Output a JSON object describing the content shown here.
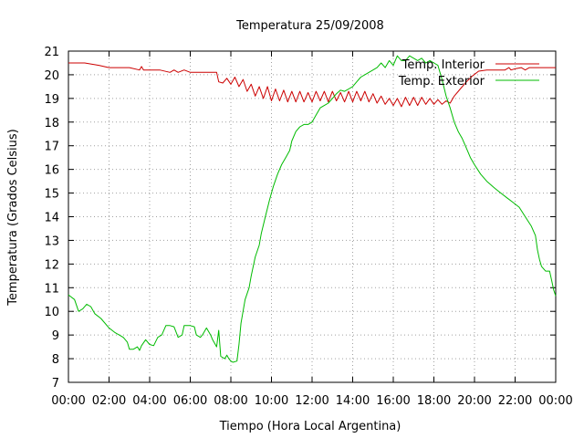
{
  "chart_data": {
    "type": "line",
    "title": "Temperatura 25/09/2008",
    "xlabel": "Tiempo (Hora Local Argentina)",
    "ylabel": "Temperatura (Grados Celsius)",
    "xlim": [
      0,
      24
    ],
    "ylim": [
      7,
      21
    ],
    "xticks": [
      {
        "value": 0,
        "label": "00:00"
      },
      {
        "value": 2,
        "label": "02:00"
      },
      {
        "value": 4,
        "label": "04:00"
      },
      {
        "value": 6,
        "label": "06:00"
      },
      {
        "value": 8,
        "label": "08:00"
      },
      {
        "value": 10,
        "label": "10:00"
      },
      {
        "value": 12,
        "label": "12:00"
      },
      {
        "value": 14,
        "label": "14:00"
      },
      {
        "value": 16,
        "label": "16:00"
      },
      {
        "value": 18,
        "label": "18:00"
      },
      {
        "value": 20,
        "label": "20:00"
      },
      {
        "value": 22,
        "label": "22:00"
      },
      {
        "value": 24,
        "label": "00:00"
      }
    ],
    "yticks": [
      7,
      8,
      9,
      10,
      11,
      12,
      13,
      14,
      15,
      16,
      17,
      18,
      19,
      20,
      21
    ],
    "grid": true,
    "legend_position": "top-right",
    "series": [
      {
        "name": "Temp. Interior",
        "color": "#cc0000",
        "points": [
          [
            0,
            20.5
          ],
          [
            0.8,
            20.5
          ],
          [
            1.5,
            20.4
          ],
          [
            2,
            20.3
          ],
          [
            3,
            20.3
          ],
          [
            3.5,
            20.2
          ],
          [
            3.6,
            20.35
          ],
          [
            3.7,
            20.2
          ],
          [
            4,
            20.2
          ],
          [
            4.5,
            20.2
          ],
          [
            5,
            20.1
          ],
          [
            5.2,
            20.2
          ],
          [
            5.4,
            20.1
          ],
          [
            5.7,
            20.2
          ],
          [
            6,
            20.1
          ],
          [
            6.5,
            20.1
          ],
          [
            7,
            20.1
          ],
          [
            7.3,
            20.1
          ],
          [
            7.4,
            19.7
          ],
          [
            7.6,
            19.65
          ],
          [
            7.8,
            19.85
          ],
          [
            8.0,
            19.6
          ],
          [
            8.2,
            19.9
          ],
          [
            8.4,
            19.5
          ],
          [
            8.6,
            19.8
          ],
          [
            8.8,
            19.3
          ],
          [
            9.0,
            19.6
          ],
          [
            9.2,
            19.1
          ],
          [
            9.4,
            19.5
          ],
          [
            9.6,
            19.0
          ],
          [
            9.8,
            19.5
          ],
          [
            10.0,
            18.9
          ],
          [
            10.2,
            19.4
          ],
          [
            10.4,
            18.9
          ],
          [
            10.6,
            19.35
          ],
          [
            10.8,
            18.85
          ],
          [
            11.0,
            19.3
          ],
          [
            11.2,
            18.85
          ],
          [
            11.4,
            19.3
          ],
          [
            11.6,
            18.85
          ],
          [
            11.8,
            19.25
          ],
          [
            12.0,
            18.85
          ],
          [
            12.2,
            19.3
          ],
          [
            12.4,
            18.9
          ],
          [
            12.6,
            19.3
          ],
          [
            12.8,
            18.85
          ],
          [
            13.0,
            19.3
          ],
          [
            13.2,
            18.9
          ],
          [
            13.4,
            19.25
          ],
          [
            13.6,
            18.85
          ],
          [
            13.8,
            19.3
          ],
          [
            14.0,
            18.85
          ],
          [
            14.2,
            19.3
          ],
          [
            14.4,
            18.9
          ],
          [
            14.6,
            19.3
          ],
          [
            14.8,
            18.85
          ],
          [
            15.0,
            19.2
          ],
          [
            15.2,
            18.8
          ],
          [
            15.4,
            19.1
          ],
          [
            15.6,
            18.75
          ],
          [
            15.8,
            19.0
          ],
          [
            16.0,
            18.7
          ],
          [
            16.2,
            19.0
          ],
          [
            16.4,
            18.65
          ],
          [
            16.6,
            19.05
          ],
          [
            16.8,
            18.7
          ],
          [
            17.0,
            19.05
          ],
          [
            17.2,
            18.7
          ],
          [
            17.4,
            19.05
          ],
          [
            17.6,
            18.75
          ],
          [
            17.8,
            19.0
          ],
          [
            18.0,
            18.75
          ],
          [
            18.2,
            18.95
          ],
          [
            18.4,
            18.75
          ],
          [
            18.6,
            18.9
          ],
          [
            18.8,
            18.8
          ],
          [
            19.0,
            19.1
          ],
          [
            19.3,
            19.4
          ],
          [
            19.6,
            19.7
          ],
          [
            19.9,
            19.95
          ],
          [
            20.2,
            20.15
          ],
          [
            20.6,
            20.2
          ],
          [
            21,
            20.2
          ],
          [
            21.5,
            20.2
          ],
          [
            21.7,
            20.3
          ],
          [
            21.8,
            20.2
          ],
          [
            22,
            20.25
          ],
          [
            22.3,
            20.3
          ],
          [
            22.5,
            20.2
          ],
          [
            22.7,
            20.3
          ],
          [
            23,
            20.3
          ],
          [
            24,
            20.3
          ]
        ]
      },
      {
        "name": "Temp. Exterior",
        "color": "#00bb00",
        "points": [
          [
            0,
            10.7
          ],
          [
            0.3,
            10.5
          ],
          [
            0.5,
            10.0
          ],
          [
            0.7,
            10.1
          ],
          [
            0.9,
            10.3
          ],
          [
            1.1,
            10.2
          ],
          [
            1.3,
            9.9
          ],
          [
            1.6,
            9.7
          ],
          [
            2.0,
            9.3
          ],
          [
            2.3,
            9.1
          ],
          [
            2.5,
            9.0
          ],
          [
            2.7,
            8.9
          ],
          [
            2.9,
            8.7
          ],
          [
            3.0,
            8.4
          ],
          [
            3.2,
            8.4
          ],
          [
            3.4,
            8.5
          ],
          [
            3.5,
            8.35
          ],
          [
            3.6,
            8.55
          ],
          [
            3.8,
            8.8
          ],
          [
            4.0,
            8.6
          ],
          [
            4.2,
            8.55
          ],
          [
            4.4,
            8.9
          ],
          [
            4.6,
            9.0
          ],
          [
            4.8,
            9.4
          ],
          [
            5.0,
            9.4
          ],
          [
            5.2,
            9.35
          ],
          [
            5.4,
            8.9
          ],
          [
            5.6,
            9.0
          ],
          [
            5.7,
            9.4
          ],
          [
            6.0,
            9.4
          ],
          [
            6.2,
            9.35
          ],
          [
            6.3,
            9.0
          ],
          [
            6.5,
            8.9
          ],
          [
            6.6,
            9.0
          ],
          [
            6.8,
            9.3
          ],
          [
            7.0,
            9.0
          ],
          [
            7.1,
            8.8
          ],
          [
            7.3,
            8.5
          ],
          [
            7.4,
            9.2
          ],
          [
            7.5,
            8.1
          ],
          [
            7.7,
            8.0
          ],
          [
            7.8,
            8.15
          ],
          [
            7.9,
            8.0
          ],
          [
            8.0,
            7.9
          ],
          [
            8.1,
            7.85
          ],
          [
            8.3,
            7.9
          ],
          [
            8.4,
            8.6
          ],
          [
            8.5,
            9.5
          ],
          [
            8.7,
            10.5
          ],
          [
            8.9,
            11.0
          ],
          [
            9.0,
            11.5
          ],
          [
            9.2,
            12.3
          ],
          [
            9.4,
            12.8
          ],
          [
            9.5,
            13.3
          ],
          [
            9.7,
            14.0
          ],
          [
            9.9,
            14.7
          ],
          [
            10.1,
            15.3
          ],
          [
            10.3,
            15.8
          ],
          [
            10.5,
            16.2
          ],
          [
            10.7,
            16.5
          ],
          [
            10.9,
            16.8
          ],
          [
            11.0,
            17.2
          ],
          [
            11.2,
            17.6
          ],
          [
            11.4,
            17.8
          ],
          [
            11.6,
            17.9
          ],
          [
            11.8,
            17.9
          ],
          [
            12.0,
            18.0
          ],
          [
            12.2,
            18.3
          ],
          [
            12.4,
            18.6
          ],
          [
            12.6,
            18.7
          ],
          [
            12.8,
            18.8
          ],
          [
            13.0,
            19.0
          ],
          [
            13.2,
            19.2
          ],
          [
            13.4,
            19.35
          ],
          [
            13.6,
            19.3
          ],
          [
            13.8,
            19.4
          ],
          [
            14.0,
            19.5
          ],
          [
            14.2,
            19.7
          ],
          [
            14.4,
            19.9
          ],
          [
            14.6,
            20.0
          ],
          [
            14.8,
            20.1
          ],
          [
            15.0,
            20.2
          ],
          [
            15.2,
            20.3
          ],
          [
            15.4,
            20.5
          ],
          [
            15.6,
            20.3
          ],
          [
            15.8,
            20.6
          ],
          [
            16.0,
            20.4
          ],
          [
            16.2,
            20.8
          ],
          [
            16.4,
            20.6
          ],
          [
            16.6,
            20.6
          ],
          [
            16.8,
            20.8
          ],
          [
            17.0,
            20.7
          ],
          [
            17.2,
            20.6
          ],
          [
            17.4,
            20.7
          ],
          [
            17.6,
            20.5
          ],
          [
            17.8,
            20.6
          ],
          [
            18.0,
            20.5
          ],
          [
            18.2,
            20.4
          ],
          [
            18.4,
            19.8
          ],
          [
            18.6,
            19.1
          ],
          [
            18.8,
            18.6
          ],
          [
            19.0,
            18.0
          ],
          [
            19.2,
            17.6
          ],
          [
            19.4,
            17.3
          ],
          [
            19.6,
            16.9
          ],
          [
            19.8,
            16.5
          ],
          [
            20.0,
            16.2
          ],
          [
            20.3,
            15.8
          ],
          [
            20.6,
            15.5
          ],
          [
            21.0,
            15.2
          ],
          [
            21.3,
            15.0
          ],
          [
            21.6,
            14.8
          ],
          [
            21.9,
            14.6
          ],
          [
            22.2,
            14.4
          ],
          [
            22.5,
            14.0
          ],
          [
            22.8,
            13.6
          ],
          [
            23.0,
            13.2
          ],
          [
            23.1,
            12.6
          ],
          [
            23.2,
            12.2
          ],
          [
            23.3,
            11.9
          ],
          [
            23.5,
            11.7
          ],
          [
            23.7,
            11.7
          ],
          [
            23.8,
            11.3
          ],
          [
            23.9,
            10.9
          ],
          [
            24.0,
            10.65
          ]
        ]
      }
    ]
  }
}
